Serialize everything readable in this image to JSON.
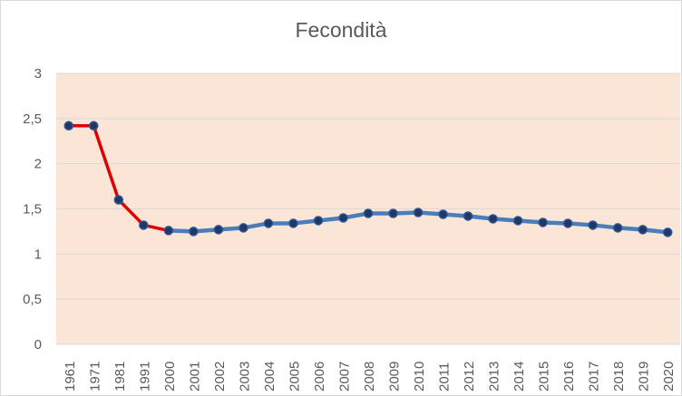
{
  "chart_data": {
    "type": "line",
    "title": "Fecondità",
    "categories": [
      "1961",
      "1971",
      "1981",
      "1991",
      "2000",
      "2001",
      "2002",
      "2003",
      "2004",
      "2005",
      "2006",
      "2007",
      "2008",
      "2009",
      "2010",
      "2011",
      "2012",
      "2013",
      "2014",
      "2015",
      "2016",
      "2017",
      "2018",
      "2019",
      "2020"
    ],
    "values": [
      2.42,
      2.42,
      1.6,
      1.32,
      1.26,
      1.25,
      1.27,
      1.29,
      1.34,
      1.34,
      1.37,
      1.4,
      1.45,
      1.45,
      1.46,
      1.44,
      1.42,
      1.39,
      1.37,
      1.35,
      1.34,
      1.32,
      1.29,
      1.27,
      1.24
    ],
    "yticks": [
      "0",
      "0,5",
      "1",
      "1,5",
      "2",
      "2,5",
      "3"
    ],
    "ylim": [
      0,
      3
    ],
    "grid": true,
    "colors": {
      "plot_background": "#fbe5d6",
      "grid": "#d9d9d9",
      "segment_decennial": "#e00000",
      "segment_annual": "#4a7ebb",
      "marker_fill": "#1f3864",
      "marker_stroke": "#2e5597",
      "label_text": "#595959"
    }
  }
}
